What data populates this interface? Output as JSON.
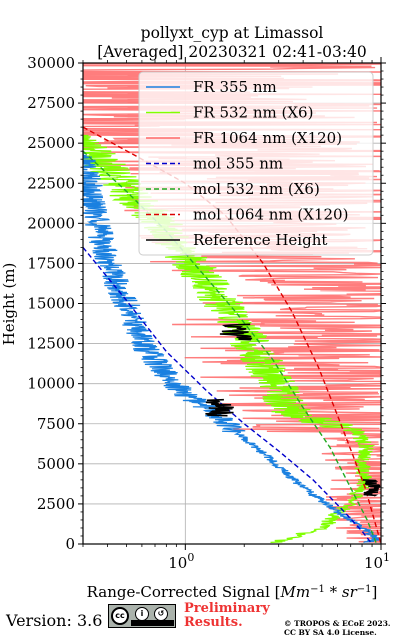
{
  "chart_data": {
    "type": "line",
    "title": "pollyxt_cyp at Limassol",
    "subtitle": "[Averaged] 20230321 02:41-03:40",
    "xlabel": "Range-Corrected Signal [Mm^-1 * sr^-1]",
    "ylabel": "Height (m)",
    "xscale": "log",
    "xlim": [
      0.3,
      10
    ],
    "ylim": [
      0,
      30000
    ],
    "x_ticks": [
      1,
      10
    ],
    "x_tick_labels": [
      "10^0",
      "10^1"
    ],
    "y_ticks": [
      0,
      2500,
      5000,
      7500,
      10000,
      12500,
      15000,
      17500,
      20000,
      22500,
      25000,
      27500,
      30000
    ],
    "y_tick_labels": [
      "0",
      "2500",
      "5000",
      "7500",
      "10000",
      "12500",
      "15000",
      "17500",
      "20000",
      "22500",
      "25000",
      "27500",
      "30000"
    ],
    "grid": true,
    "legend_position": "top-right",
    "colors": {
      "fr355": "#1a80e0",
      "fr532": "#80ff00",
      "fr1064": "#ff6666",
      "mol355": "#0000cc",
      "mol532": "#22aa22",
      "mol1064": "#dd0000",
      "ref": "#000000"
    },
    "series": [
      {
        "name": "FR 355 nm",
        "key": "fr355",
        "style": "solid",
        "points": [
          [
            0.3,
            24000
          ],
          [
            0.35,
            20500
          ],
          [
            0.4,
            17500
          ],
          [
            0.5,
            15000
          ],
          [
            0.6,
            12500
          ],
          [
            0.75,
            11000
          ],
          [
            0.95,
            9500
          ],
          [
            1.3,
            8500
          ],
          [
            1.8,
            7000
          ],
          [
            2.6,
            5500
          ],
          [
            4.0,
            3500
          ],
          [
            6.0,
            2000
          ],
          [
            8.5,
            800
          ],
          [
            9.5,
            300
          ],
          [
            8.5,
            100
          ]
        ]
      },
      {
        "name": "FR 532 nm (X6)",
        "key": "fr532",
        "style": "solid",
        "points": [
          [
            0.3,
            25000
          ],
          [
            0.4,
            23500
          ],
          [
            0.55,
            21500
          ],
          [
            0.75,
            20000
          ],
          [
            1.0,
            18000
          ],
          [
            1.35,
            16000
          ],
          [
            1.8,
            14000
          ],
          [
            2.3,
            12000
          ],
          [
            2.9,
            10000
          ],
          [
            3.5,
            8200
          ],
          [
            5.0,
            7600
          ],
          [
            7.5,
            7000
          ],
          [
            8.5,
            6000
          ],
          [
            8.0,
            5000
          ],
          [
            8.3,
            3800
          ],
          [
            7.5,
            3000
          ],
          [
            5.0,
            1000
          ],
          [
            3.0,
            150
          ]
        ]
      },
      {
        "name": "FR 1064 nm (X120)",
        "key": "fr1064",
        "style": "solid",
        "points": [
          [
            0.35,
            26000
          ],
          [
            0.6,
            25000
          ],
          [
            1.0,
            24000
          ],
          [
            1.6,
            22000
          ],
          [
            2.2,
            20000
          ],
          [
            2.8,
            17500
          ],
          [
            3.3,
            15000
          ],
          [
            3.8,
            12500
          ],
          [
            4.5,
            10000
          ],
          [
            5.5,
            8500
          ],
          [
            7.5,
            7000
          ],
          [
            9.0,
            5000
          ],
          [
            9.5,
            3800
          ],
          [
            9.0,
            3000
          ],
          [
            8.0,
            2000
          ],
          [
            9.5,
            500
          ]
        ]
      },
      {
        "name": "mol 355 nm",
        "key": "mol355",
        "style": "dashed",
        "points": [
          [
            0.3,
            18500
          ],
          [
            0.5,
            15200
          ],
          [
            0.8,
            12000
          ],
          [
            1.3,
            9500
          ],
          [
            2.0,
            7500
          ],
          [
            3.0,
            5800
          ],
          [
            4.5,
            4000
          ],
          [
            6.5,
            2000
          ],
          [
            8.0,
            800
          ],
          [
            9.0,
            0
          ]
        ]
      },
      {
        "name": "mol 532 nm (X6)",
        "key": "mol532",
        "style": "dashed",
        "points": [
          [
            0.3,
            24500
          ],
          [
            0.5,
            22000
          ],
          [
            0.8,
            19500
          ],
          [
            1.2,
            17000
          ],
          [
            1.8,
            14500
          ],
          [
            2.8,
            11500
          ],
          [
            4.0,
            8500
          ],
          [
            5.5,
            6000
          ],
          [
            7.0,
            3500
          ],
          [
            8.5,
            1500
          ],
          [
            9.5,
            0
          ]
        ]
      },
      {
        "name": "mol 1064 nm (X120)",
        "key": "mol1064",
        "style": "dashed",
        "points": [
          [
            0.3,
            26000
          ],
          [
            0.6,
            24000
          ],
          [
            1.0,
            22500
          ],
          [
            1.6,
            20500
          ],
          [
            2.5,
            17500
          ],
          [
            3.5,
            14500
          ],
          [
            4.8,
            11000
          ],
          [
            6.0,
            8000
          ],
          [
            7.2,
            5500
          ],
          [
            8.3,
            3500
          ],
          [
            9.5,
            1000
          ],
          [
            10.0,
            0
          ]
        ]
      },
      {
        "name": "Reference Height",
        "key": "ref",
        "style": "solid",
        "segments": [
          {
            "x": [
              1.25,
              1.8
            ],
            "y": [
              8000,
              9000
            ]
          },
          {
            "x": [
              1.5,
              2.2
            ],
            "y": [
              12700,
              13700
            ]
          },
          {
            "x": [
              8.0,
              10.0
            ],
            "y": [
              3000,
              4000
            ]
          }
        ]
      }
    ]
  },
  "footer": {
    "version": "Version: 3.6",
    "license_badge": {
      "icon": "cc-by-sa-icon",
      "text": "BY SA"
    },
    "preliminary": [
      "Preliminary",
      "Results."
    ],
    "copyright": [
      "© TROPOS & ECoE 2023.",
      "CC BY SA 4.0 License."
    ]
  }
}
